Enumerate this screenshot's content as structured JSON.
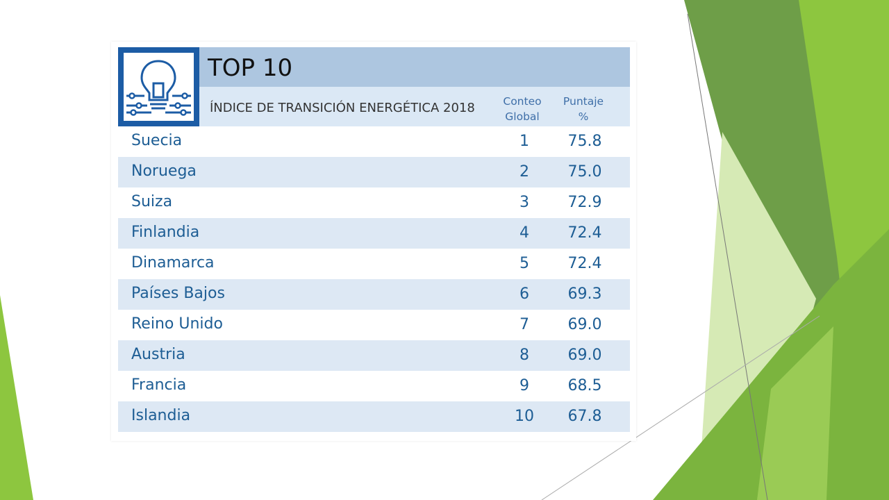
{
  "colors": {
    "green_dark": "#6a9a43",
    "green_main": "#8dc63f",
    "green_light": "#cfe6a8",
    "header_blue": "#adc6e0",
    "row_alt": "#dde8f4",
    "icon_blue": "#1c5ca5",
    "text_blue": "#1d5d94"
  },
  "table": {
    "icon": "lightbulb-circuit-icon",
    "title": "TOP 10",
    "subtitle": "ÍNDICE DE TRANSICIÓN ENERGÉTICA 2018",
    "col_rank_line1": "Conteo",
    "col_rank_line2": "Global",
    "col_score_line1": "Puntaje",
    "col_score_line2": "%",
    "rows": [
      {
        "country": "Suecia",
        "rank": "1",
        "score": "75.8"
      },
      {
        "country": "Noruega",
        "rank": "2",
        "score": "75.0"
      },
      {
        "country": "Suiza",
        "rank": "3",
        "score": "72.9"
      },
      {
        "country": "Finlandia",
        "rank": "4",
        "score": "72.4"
      },
      {
        "country": "Dinamarca",
        "rank": "5",
        "score": "72.4"
      },
      {
        "country": "Países Bajos",
        "rank": "6",
        "score": "69.3"
      },
      {
        "country": "Reino Unido",
        "rank": "7",
        "score": "69.0"
      },
      {
        "country": "Austria",
        "rank": "8",
        "score": "69.0"
      },
      {
        "country": "Francia",
        "rank": "9",
        "score": "68.5"
      },
      {
        "country": "Islandia",
        "rank": "10",
        "score": "67.8"
      }
    ]
  }
}
